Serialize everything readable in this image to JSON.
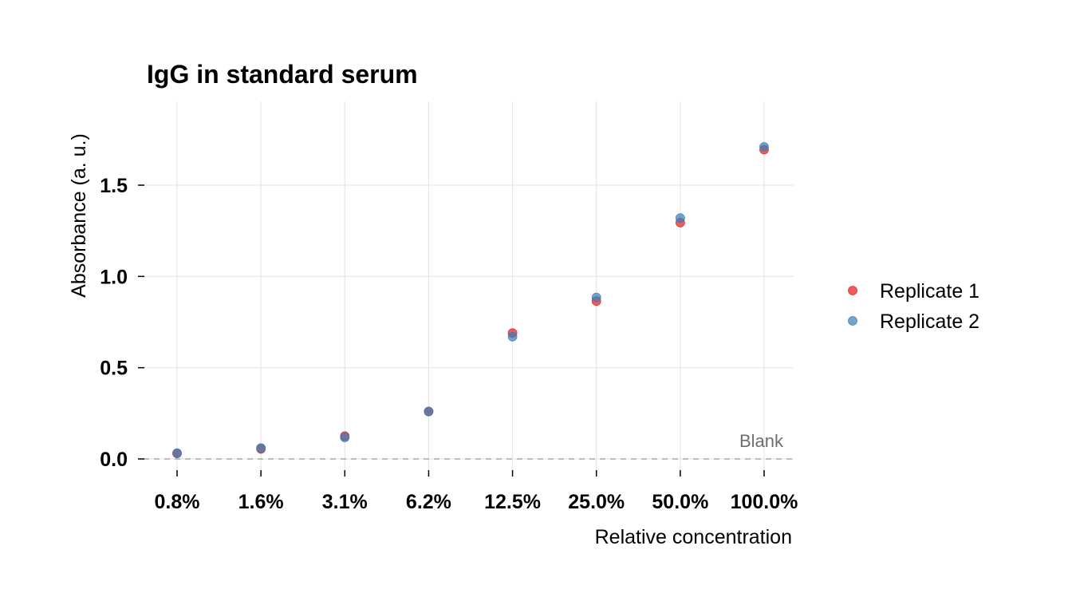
{
  "chart_data": {
    "type": "scatter",
    "title": "IgG in standard serum",
    "xlabel": "Relative concentration",
    "ylabel": "Absorbance (a. u.)",
    "categories": [
      "0.8%",
      "1.6%",
      "3.1%",
      "6.2%",
      "12.5%",
      "25.0%",
      "50.0%",
      "100.0%"
    ],
    "y_ticks": [
      0.0,
      0.5,
      1.0,
      1.5
    ],
    "y_tick_labels": [
      "0.0",
      "0.5",
      "1.0",
      "1.5"
    ],
    "ylim": [
      -0.06,
      1.95
    ],
    "grid": true,
    "legend_position": "right",
    "series": [
      {
        "name": "Replicate 1",
        "color": "#E41A1C",
        "values": [
          0.03,
          0.055,
          0.125,
          0.26,
          0.69,
          0.865,
          1.295,
          1.695
        ]
      },
      {
        "name": "Replicate 2",
        "color": "#377EB8",
        "values": [
          0.032,
          0.06,
          0.118,
          0.26,
          0.67,
          0.885,
          1.32,
          1.71
        ]
      }
    ],
    "reference_line": {
      "y": 0.0,
      "label": "Blank",
      "style": "dashed"
    }
  }
}
